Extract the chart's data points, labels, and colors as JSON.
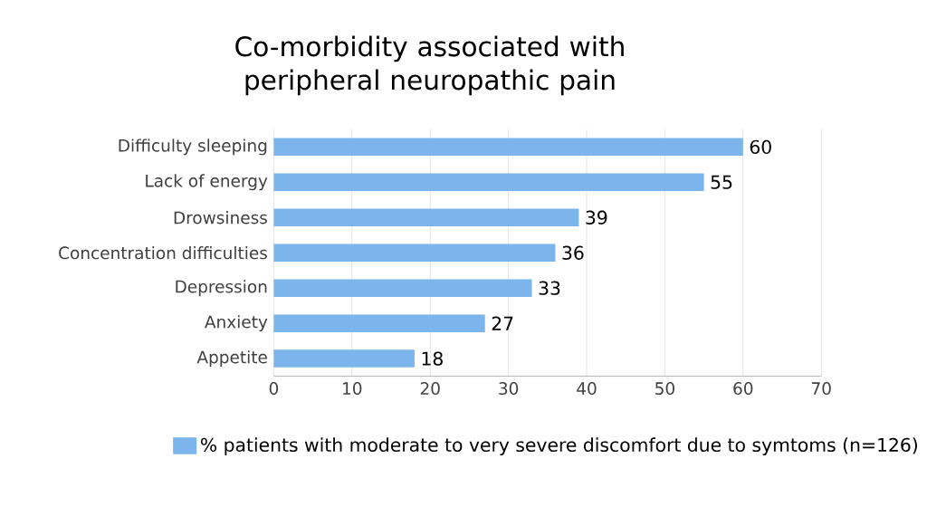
{
  "chart_data": {
    "type": "bar",
    "orientation": "horizontal",
    "title": "Co-morbidity associated with peripheral neuropathic pain",
    "categories": [
      "Difficulty sleeping",
      "Lack of energy",
      "Drowsiness",
      "Concentration difficulties",
      "Depression",
      "Anxiety",
      "Appetite"
    ],
    "series": [
      {
        "name": "% patients with moderate to very severe discomfort due to symtoms (n=126)",
        "color": "#7cb5ec",
        "values": [
          60,
          55,
          39,
          36,
          33,
          27,
          18
        ]
      }
    ],
    "xlim": [
      0,
      70
    ],
    "xticks": [
      0,
      10,
      20,
      30,
      40,
      50,
      60,
      70
    ],
    "grid": "x",
    "legend": "bottom",
    "data_labels": true
  }
}
